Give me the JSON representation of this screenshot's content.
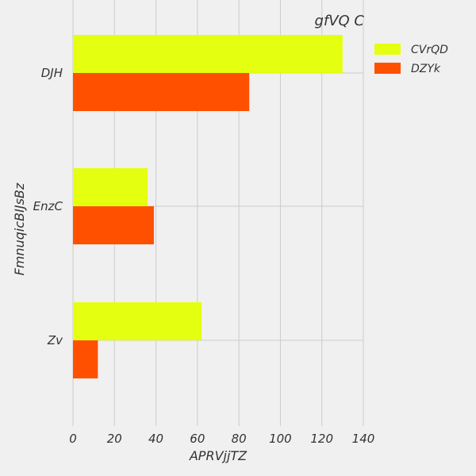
{
  "chart_data": {
    "type": "bar",
    "orientation": "horizontal",
    "title": "gfVQ C",
    "xlabel": "APRVjjTZ",
    "ylabel": "FmnuqicBIJsBz",
    "categories": [
      "DJH",
      "EnzC",
      "Zv"
    ],
    "series": [
      {
        "name": "CVrQD",
        "values": [
          130,
          36,
          62
        ],
        "color": "#e5ff10"
      },
      {
        "name": "DZYk",
        "values": [
          85,
          39,
          12
        ],
        "color": "#ff5000"
      }
    ],
    "xlim": [
      0,
      140
    ],
    "xticks": [
      "0",
      "20",
      "40",
      "60",
      "80",
      "100",
      "120",
      "140"
    ],
    "grid": true,
    "legend_position": "top-right"
  }
}
